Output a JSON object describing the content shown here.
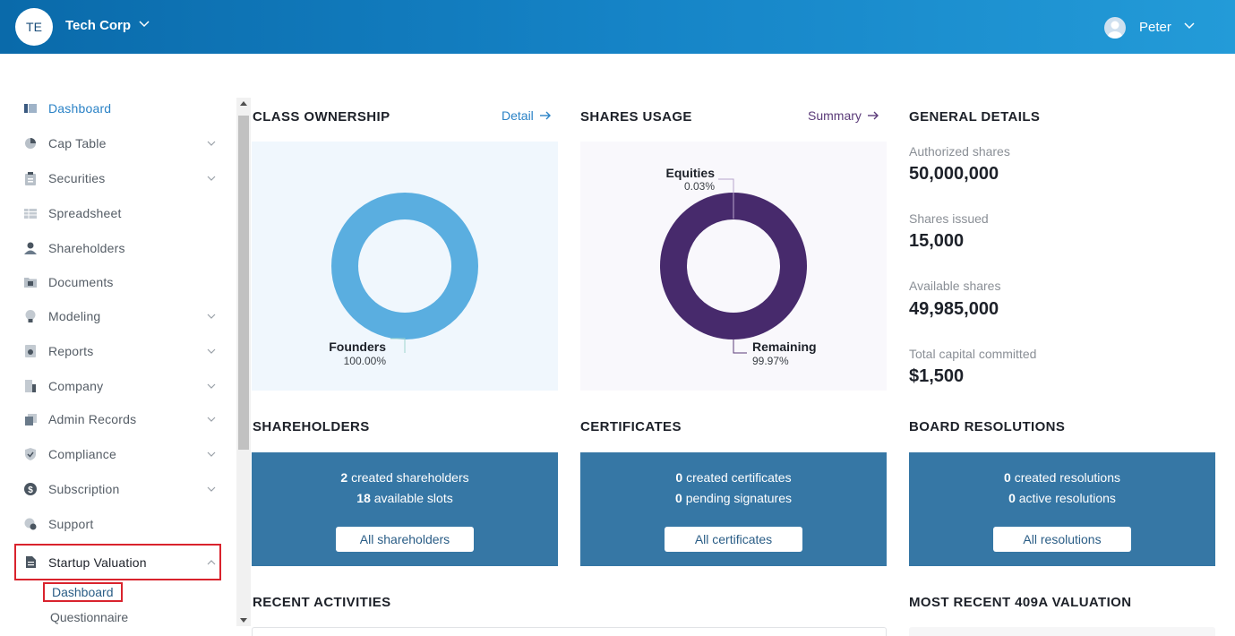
{
  "header": {
    "org_initials": "TE",
    "org_name": "Tech Corp",
    "user_name": "Peter"
  },
  "sidebar": {
    "items": [
      {
        "label": "Dashboard",
        "icon": "dashboard-icon",
        "has_chevron": false,
        "active": true
      },
      {
        "label": "Cap Table",
        "icon": "pie-chart-icon",
        "has_chevron": true
      },
      {
        "label": "Securities",
        "icon": "clipboard-icon",
        "has_chevron": true
      },
      {
        "label": "Spreadsheet",
        "icon": "spreadsheet-icon",
        "has_chevron": false
      },
      {
        "label": "Shareholders",
        "icon": "person-icon",
        "has_chevron": false
      },
      {
        "label": "Documents",
        "icon": "folder-icon",
        "has_chevron": false
      },
      {
        "label": "Modeling",
        "icon": "lightbulb-icon",
        "has_chevron": true
      },
      {
        "label": "Reports",
        "icon": "report-icon",
        "has_chevron": true
      },
      {
        "label": "Company",
        "icon": "building-icon",
        "has_chevron": true
      },
      {
        "label": "Admin Records",
        "icon": "records-icon",
        "has_chevron": true
      },
      {
        "label": "Compliance",
        "icon": "shield-icon",
        "has_chevron": true
      },
      {
        "label": "Subscription",
        "icon": "dollar-icon",
        "has_chevron": true
      },
      {
        "label": "Support",
        "icon": "support-icon",
        "has_chevron": false
      },
      {
        "label": "Startup Valuation",
        "icon": "document-icon",
        "has_chevron": true,
        "expanded": true
      }
    ],
    "sub_items": [
      {
        "label": "Dashboard",
        "highlighted": true
      },
      {
        "label": "Questionnaire",
        "highlighted": false
      }
    ]
  },
  "class_ownership": {
    "title": "CLASS OWNERSHIP",
    "link": "Detail",
    "color": "#5aaee0",
    "bg": "#f0f7fd"
  },
  "shares_usage": {
    "title": "SHARES USAGE",
    "link": "Summary",
    "color": "#472a6c",
    "bg": "#f9f8fc"
  },
  "chart_data": [
    {
      "type": "pie",
      "categories": [
        "Founders"
      ],
      "values": [
        100.0
      ],
      "value_labels": [
        "100.00%"
      ]
    },
    {
      "type": "pie",
      "categories": [
        "Equities",
        "Remaining"
      ],
      "values": [
        0.03,
        99.97
      ],
      "value_labels": [
        "0.03%",
        "99.97%"
      ]
    }
  ],
  "general_details": {
    "title": "GENERAL DETAILS",
    "stats": [
      {
        "label": "Authorized shares",
        "value": "50,000,000"
      },
      {
        "label": "Shares issued",
        "value": "15,000"
      },
      {
        "label": "Available shares",
        "value": "49,985,000"
      },
      {
        "label": "Total capital committed",
        "value": "$1,500"
      }
    ]
  },
  "cards": {
    "shareholders": {
      "title": "SHAREHOLDERS",
      "line1_num": "2",
      "line1_text": "created shareholders",
      "line2_num": "18",
      "line2_text": "available slots",
      "button": "All shareholders"
    },
    "certificates": {
      "title": "CERTIFICATES",
      "line1_num": "0",
      "line1_text": "created certificates",
      "line2_num": "0",
      "line2_text": "pending signatures",
      "button": "All certificates"
    },
    "resolutions": {
      "title": "BOARD RESOLUTIONS",
      "line1_num": "0",
      "line1_text": "created resolutions",
      "line2_num": "0",
      "line2_text": "active resolutions",
      "button": "All resolutions"
    }
  },
  "recent_activities": {
    "title": "RECENT ACTIVITIES"
  },
  "recent_409a": {
    "title": "MOST RECENT 409A VALUATION"
  }
}
